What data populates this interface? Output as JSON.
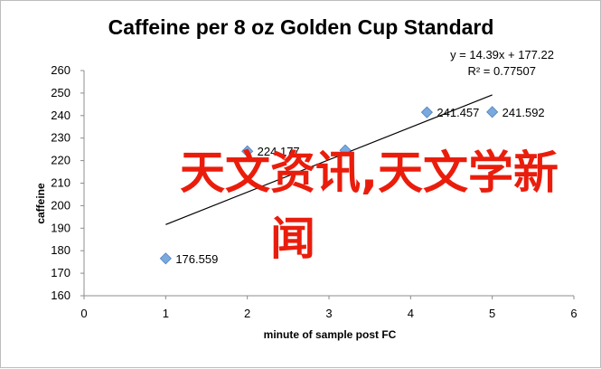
{
  "chart_data": {
    "type": "scatter",
    "title": "Caffeine per 8 oz Golden Cup Standard",
    "xlabel": "minute of sample post FC",
    "ylabel": "caffeine",
    "xlim": [
      0,
      6
    ],
    "ylim": [
      160,
      260
    ],
    "x_ticks": [
      "0",
      "1",
      "2",
      "3",
      "4",
      "5",
      "6"
    ],
    "y_ticks": [
      "160",
      "170",
      "180",
      "190",
      "200",
      "210",
      "220",
      "230",
      "240",
      "250",
      "260"
    ],
    "points": [
      {
        "x": 1,
        "y": 176.559,
        "label": "176.559"
      },
      {
        "x": 2,
        "y": 224.177,
        "label": "224.177"
      },
      {
        "x": 3.2,
        "y": 224.6,
        "label": ""
      },
      {
        "x": 4.2,
        "y": 241.457,
        "label": "241.457"
      },
      {
        "x": 5,
        "y": 241.592,
        "label": "241.592"
      }
    ],
    "trendline": {
      "slope": 14.39,
      "intercept": 177.22,
      "x_range": [
        1,
        5
      ]
    },
    "equation": "y = 14.39x + 177.22",
    "r_squared": "R² = 0.77507",
    "grid": false,
    "legend": "none",
    "marker_color": "#7aa9df"
  },
  "overlay": {
    "line1": "天文资讯,天文学新",
    "line2": "闻",
    "color": "#ea1d0c"
  }
}
